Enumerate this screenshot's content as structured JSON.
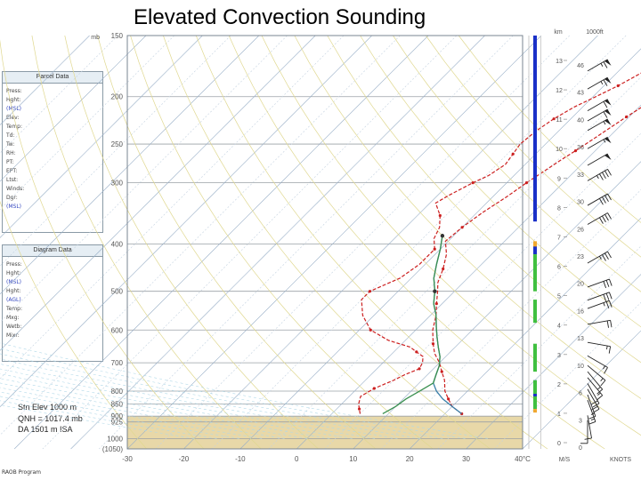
{
  "title": "Elevated Convection Sounding",
  "panels": {
    "parcel": {
      "header": "Parcel Data",
      "lines": [
        "Press:",
        "Hght:",
        "(MSL)",
        "Elev:",
        "Temp:",
        "Td:",
        "Tw:",
        "RH:",
        "PT:",
        "EPT:",
        "Ltst:",
        "Winds:",
        "Dgr:",
        "(MSL)"
      ]
    },
    "diagram": {
      "header": "Diagram Data",
      "lines": [
        "Press:",
        "Hght:",
        "(MSL)",
        "Hght:",
        "(AGL)",
        "Temp:",
        "Mxg:",
        "Wetb:",
        "Mixr:"
      ]
    }
  },
  "station": {
    "elev": "Stn Elev 1000 m",
    "qnh": "QNH = 1017.4 mb",
    "da": "DA 1501 m ISA"
  },
  "brand": "RAOB Program",
  "chart_data": {
    "type": "line",
    "title": "Elevated Convection Sounding",
    "xlabel": "",
    "ylabel": "mb",
    "x_ticks": [
      -30,
      -20,
      -10,
      0,
      10,
      20,
      30,
      40
    ],
    "xlim": [
      -30,
      40
    ],
    "x_unit_label": "40°C",
    "y_ticks": [
      150,
      200,
      250,
      300,
      400,
      500,
      600,
      700,
      800,
      850,
      900,
      925,
      1000
    ],
    "y_tick_labels": [
      "150",
      "200",
      "250",
      "300",
      "400",
      "500",
      "600",
      "700",
      "800",
      "850",
      "900",
      "925",
      "1000",
      "(1050)"
    ],
    "ylim": [
      150,
      1050
    ],
    "y_scale": "log",
    "ground_pressure": 900,
    "series": [
      {
        "color": "#cc2020",
        "style": "dashed",
        "points": [
          [
            6.5,
            150
          ],
          [
            5.5,
            165
          ],
          [
            4.5,
            178
          ],
          [
            3,
            190
          ],
          [
            2,
            200
          ],
          [
            0.5,
            210
          ],
          [
            -0.5,
            220
          ],
          [
            -1.5,
            232
          ],
          [
            -2.5,
            245
          ],
          [
            -3.5,
            258
          ],
          [
            -4.5,
            270
          ],
          [
            -5.5,
            285
          ],
          [
            -6.5,
            300
          ],
          [
            -7.5,
            320
          ],
          [
            -9,
            345
          ],
          [
            -10,
            370
          ],
          [
            -10.5,
            395
          ],
          [
            -8,
            420
          ],
          [
            -6,
            450
          ],
          [
            -4.5,
            480
          ],
          [
            -3,
            500
          ],
          [
            -1,
            530
          ],
          [
            1,
            560
          ],
          [
            3,
            600
          ],
          [
            5.5,
            640
          ],
          [
            7.5,
            670
          ],
          [
            10,
            700
          ],
          [
            12,
            730
          ],
          [
            14,
            760
          ],
          [
            16,
            800
          ],
          [
            18,
            830
          ],
          [
            20,
            860
          ],
          [
            22,
            880
          ],
          [
            23,
            890
          ]
        ]
      },
      {
        "color": "#cc2020",
        "style": "dashed",
        "points": [
          [
            -2.5,
            150
          ],
          [
            -4,
            165
          ],
          [
            -5.5,
            178
          ],
          [
            -7.5,
            190
          ],
          [
            -9.5,
            200
          ],
          [
            -11.5,
            210
          ],
          [
            -13,
            222
          ],
          [
            -14,
            235
          ],
          [
            -14.5,
            250
          ],
          [
            -14,
            262
          ],
          [
            -13.5,
            275
          ],
          [
            -14.5,
            290
          ],
          [
            -16,
            300
          ],
          [
            -18,
            318
          ],
          [
            -19,
            330
          ],
          [
            -16,
            350
          ],
          [
            -14,
            370
          ],
          [
            -13,
            390
          ],
          [
            -11,
            410
          ],
          [
            -11,
            440
          ],
          [
            -12,
            470
          ],
          [
            -15,
            500
          ],
          [
            -15,
            520
          ],
          [
            -12,
            560
          ],
          [
            -8,
            600
          ],
          [
            -3,
            630
          ],
          [
            2,
            650
          ],
          [
            4,
            665
          ],
          [
            6,
            680
          ],
          [
            7,
            700
          ],
          [
            7.5,
            720
          ],
          [
            6,
            740
          ],
          [
            5,
            760
          ],
          [
            3,
            790
          ],
          [
            2,
            820
          ],
          [
            3,
            850
          ],
          [
            4,
            870
          ],
          [
            5,
            890
          ]
        ]
      },
      {
        "color": "#3a7fa8",
        "style": "solid",
        "points": [
          [
            23,
            890
          ],
          [
            20,
            860
          ],
          [
            17,
            830
          ],
          [
            14.5,
            800
          ],
          [
            12.5,
            770
          ],
          [
            11.5,
            740
          ],
          [
            10.5,
            710
          ],
          [
            9,
            680
          ],
          [
            7,
            650
          ],
          [
            5,
            620
          ],
          [
            3,
            590
          ],
          [
            1,
            560
          ],
          [
            -1.5,
            530
          ],
          [
            -3.5,
            500
          ],
          [
            -6,
            470
          ],
          [
            -8,
            440
          ],
          [
            -10,
            410
          ],
          [
            -12,
            385
          ]
        ]
      },
      {
        "color": "#3a9050",
        "style": "solid",
        "points": [
          [
            9,
            890
          ],
          [
            10,
            860
          ],
          [
            10.5,
            830
          ],
          [
            11.5,
            800
          ],
          [
            12.5,
            770
          ],
          [
            11.5,
            740
          ],
          [
            10.5,
            710
          ],
          [
            9,
            680
          ],
          [
            7,
            650
          ],
          [
            5,
            620
          ],
          [
            3,
            590
          ],
          [
            1,
            560
          ],
          [
            -1.5,
            530
          ],
          [
            -3.5,
            500
          ],
          [
            -6,
            470
          ],
          [
            -8,
            440
          ],
          [
            -10,
            410
          ],
          [
            -12,
            385
          ]
        ]
      }
    ],
    "height_axis": {
      "label_top": "km",
      "labels": [
        "13",
        "12",
        "11",
        "10",
        "9",
        "8",
        "7",
        "6",
        "5",
        "4",
        "3",
        "2",
        "1",
        "0"
      ]
    },
    "thousands_feet_axis": {
      "label_top": "1000ft",
      "labels": [
        "46",
        "43",
        "40",
        "36",
        "33",
        "30",
        "26",
        "23",
        "20",
        "16",
        "13",
        "10",
        "6",
        "3",
        "0"
      ]
    },
    "bottom_labels": {
      "ms": "M/S",
      "knots": "KNOTS"
    },
    "wind_barbs": [
      {
        "p": 170,
        "spd": 65,
        "dir": 300
      },
      {
        "p": 185,
        "spd": 65,
        "dir": 300
      },
      {
        "p": 205,
        "spd": 60,
        "dir": 300
      },
      {
        "p": 215,
        "spd": 60,
        "dir": 300
      },
      {
        "p": 225,
        "spd": 55,
        "dir": 300
      },
      {
        "p": 245,
        "spd": 55,
        "dir": 300
      },
      {
        "p": 265,
        "spd": 50,
        "dir": 300
      },
      {
        "p": 285,
        "spd": 45,
        "dir": 300
      },
      {
        "p": 320,
        "spd": 40,
        "dir": 300
      },
      {
        "p": 350,
        "spd": 40,
        "dir": 300
      },
      {
        "p": 420,
        "spd": 35,
        "dir": 300
      },
      {
        "p": 470,
        "spd": 30,
        "dir": 290
      },
      {
        "p": 500,
        "spd": 30,
        "dir": 290
      },
      {
        "p": 520,
        "spd": 25,
        "dir": 290
      },
      {
        "p": 560,
        "spd": 20,
        "dir": 280
      },
      {
        "p": 610,
        "spd": 15,
        "dir": 260
      },
      {
        "p": 650,
        "spd": 15,
        "dir": 240
      },
      {
        "p": 680,
        "spd": 15,
        "dir": 230
      },
      {
        "p": 700,
        "spd": 15,
        "dir": 220
      },
      {
        "p": 720,
        "spd": 15,
        "dir": 220
      },
      {
        "p": 740,
        "spd": 20,
        "dir": 210
      },
      {
        "p": 760,
        "spd": 20,
        "dir": 210
      },
      {
        "p": 780,
        "spd": 15,
        "dir": 200
      },
      {
        "p": 800,
        "spd": 15,
        "dir": 200
      },
      {
        "p": 860,
        "spd": 10,
        "dir": 190
      },
      {
        "p": 880,
        "spd": 10,
        "dir": 180
      }
    ],
    "cloud_bars": {
      "blue": [
        [
          150,
          360
        ],
        [
          400,
          420
        ],
        [
          810,
          830
        ],
        [
          760,
          780
        ]
      ],
      "green": [
        [
          420,
          500
        ],
        [
          520,
          580
        ],
        [
          640,
          730
        ],
        [
          760,
          810
        ],
        [
          820,
          870
        ]
      ],
      "orange": [
        [
          395,
          405
        ],
        [
          870,
          885
        ]
      ]
    }
  }
}
